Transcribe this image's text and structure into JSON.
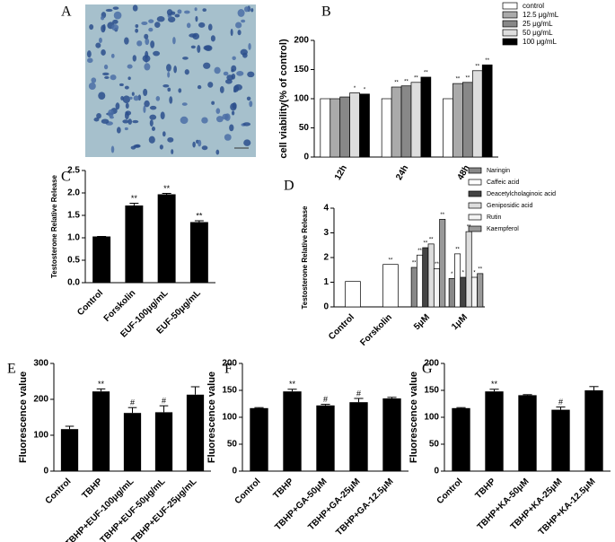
{
  "chart_data": [
    {
      "type": "image",
      "label": "A"
    },
    {
      "type": "bar",
      "label": "B",
      "ylabel": "cell viability(% of control)",
      "categories": [
        "12h",
        "24h",
        "48h"
      ],
      "series": [
        {
          "name": "control",
          "color": "#ffffff",
          "values": [
            100,
            100,
            100
          ],
          "significance": [
            null,
            null,
            null
          ]
        },
        {
          "name": "12.5 μg/mL",
          "color": "#aaaaaa",
          "values": [
            100,
            120,
            126
          ],
          "significance": [
            null,
            "**",
            "**"
          ]
        },
        {
          "name": "25 μg/mL",
          "color": "#888888",
          "values": [
            103,
            122,
            128
          ],
          "significance": [
            null,
            "**",
            "**"
          ]
        },
        {
          "name": "50 μg/mL",
          "color": "#dddddd",
          "values": [
            110,
            128,
            148
          ],
          "significance": [
            "*",
            "**",
            "**"
          ]
        },
        {
          "name": "100 μg/mL",
          "color": "#000000",
          "values": [
            108,
            137,
            158
          ],
          "significance": [
            "*",
            "**",
            "**"
          ]
        }
      ],
      "ylim": [
        0,
        200
      ],
      "yticks": [
        0,
        50,
        100,
        150,
        200
      ]
    },
    {
      "type": "bar",
      "label": "C",
      "ylabel": "Testosterone Relative Release",
      "categories": [
        "Control",
        "Forskolin",
        "EUF-100μg/mL",
        "EUF-50μg/mL"
      ],
      "values": [
        1.03,
        1.72,
        1.97,
        1.35
      ],
      "errors": [
        0,
        0.05,
        0.02,
        0.03
      ],
      "significance": [
        null,
        "**",
        "**",
        "**"
      ],
      "color": "#000000",
      "ylim": [
        0,
        2.5
      ],
      "yticks": [
        {
          "value": 0,
          "label": "0.0"
        },
        0.5,
        {
          "value": 1,
          "label": "1.0"
        },
        1.5,
        {
          "value": 2,
          "label": "2.0"
        },
        2.5
      ]
    },
    {
      "type": "grouped-reference-bar",
      "label": "D",
      "ylabel": "Testosterone Relative Release",
      "reference": {
        "categories": [
          "Control",
          "Forskolin"
        ],
        "values": [
          1.03,
          1.72
        ],
        "significance": [
          null,
          "**"
        ]
      },
      "categories": [
        "5μM",
        "1μM"
      ],
      "series": [
        {
          "name": "Naringin",
          "color": "#888888",
          "values": [
            1.6,
            1.15
          ],
          "significance": [
            "**",
            "*"
          ]
        },
        {
          "name": "Caffeic acid",
          "color": "#ffffff",
          "values": [
            2.1,
            2.15
          ],
          "significance": [
            "**",
            "**"
          ]
        },
        {
          "name": "Deacetylcholaginoic acid",
          "color": "#444444",
          "values": [
            2.4,
            1.2
          ],
          "significance": [
            "**",
            "*"
          ]
        },
        {
          "name": "Geniposidic acid",
          "color": "#dddddd",
          "values": [
            2.55,
            3.05
          ],
          "significance": [
            "**",
            "**"
          ]
        },
        {
          "name": "Rutin",
          "color": "#f4f4f4",
          "values": [
            1.55,
            1.2
          ],
          "significance": [
            "**",
            "*"
          ]
        },
        {
          "name": "Kaempferol",
          "color": "#999999",
          "values": [
            3.55,
            1.35
          ],
          "significance": [
            "**",
            "**"
          ]
        }
      ],
      "ylim": [
        0,
        4
      ],
      "yticks": [
        0,
        1,
        2,
        3,
        4
      ]
    },
    {
      "type": "bar",
      "label": "E",
      "ylabel": "Fluorescence value",
      "categories": [
        "Control",
        "TBHP",
        "TBHP+EUF-100μg/mL",
        "TBHP+EUF-50μg/mL",
        "TBHP+EUF-25μg/mL"
      ],
      "values": [
        117,
        222,
        162,
        164,
        213
      ],
      "errors": [
        8,
        7,
        15,
        18,
        22
      ],
      "significance": [
        null,
        "**",
        "#",
        "#",
        null
      ],
      "color": "#000000",
      "ylim": [
        0,
        300
      ],
      "yticks": [
        0,
        100,
        200,
        300
      ]
    },
    {
      "type": "bar",
      "label": "F",
      "ylabel": "Fluorescence value",
      "categories": [
        "Control",
        "TBHP",
        "TBHP+GA-50μM",
        "TBHP+GA-25μM",
        "TBHP+GA-12.5μM"
      ],
      "values": [
        117,
        148,
        122,
        128,
        135
      ],
      "errors": [
        1,
        4,
        2,
        7,
        2
      ],
      "significance": [
        null,
        "**",
        "#",
        "#",
        null
      ],
      "color": "#000000",
      "ylim": [
        0,
        200
      ],
      "yticks": [
        0,
        50,
        100,
        150,
        200
      ]
    },
    {
      "type": "bar",
      "label": "G",
      "ylabel": "Fluorescence value",
      "categories": [
        "Control",
        "TBHP",
        "TBHP+KA-50μM",
        "TBHP+KA-25μM",
        "TBHP+KA-12.5μM"
      ],
      "values": [
        117,
        148,
        141,
        114,
        150
      ],
      "errors": [
        1,
        4,
        1,
        5,
        7
      ],
      "significance": [
        null,
        "**",
        null,
        "#",
        null
      ],
      "color": "#000000",
      "ylim": [
        0,
        200
      ],
      "yticks": [
        0,
        50,
        100,
        150,
        200
      ]
    }
  ]
}
